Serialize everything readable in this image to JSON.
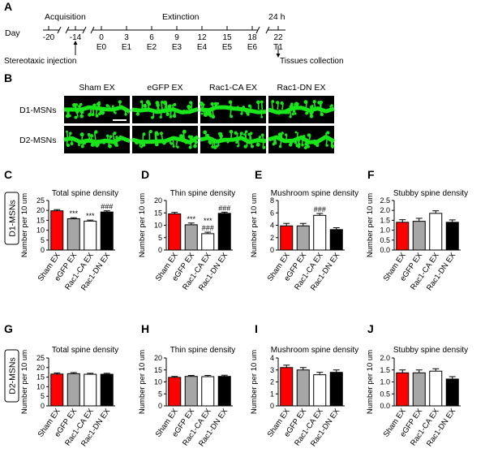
{
  "figure_letters": [
    "A",
    "B",
    "C",
    "D",
    "E",
    "F",
    "G",
    "H",
    "I",
    "J"
  ],
  "timeline": {
    "day_label": "Day",
    "ticks": [
      "-20",
      "-14",
      "0",
      "3",
      "6",
      "9",
      "12",
      "15",
      "18",
      "22"
    ],
    "phases": {
      "acquisition": "Acquisition",
      "extinction": "Extinction",
      "test": "24 h"
    },
    "sessions": [
      "E0",
      "E1",
      "E2",
      "E3",
      "E4",
      "E5",
      "E6",
      "T1"
    ],
    "injection_label": "Stereotaxic injection",
    "collection_label": "Tissues collection"
  },
  "images": {
    "columns": [
      "Sham EX",
      "eGFP EX",
      "Rac1-CA EX",
      "Rac1-DN EX"
    ],
    "rows": [
      "D1-MSNs",
      "D2-MSNs"
    ],
    "fill_color": "#000000",
    "dendrite_color": "#19e619"
  },
  "row_labels": [
    "D1-MSNs",
    "D2-MSNs"
  ],
  "colors": {
    "sham": "#ff0000",
    "egfp": "#a6a6a6",
    "ca": "#ffffff",
    "dn": "#000000"
  },
  "chart_data": [
    {
      "type": "bar",
      "title": "Total spine density",
      "ylabel": "Number per 10 um",
      "categories": [
        "Sham EX",
        "eGFP EX",
        "Rac1-CA EX",
        "Rac1-DN EX"
      ],
      "values": [
        19.8,
        15.8,
        14.6,
        19.2
      ],
      "errors": [
        0.6,
        0.5,
        0.5,
        0.6
      ],
      "yticks": [
        "0",
        "5",
        "10",
        "15",
        "20",
        "25"
      ],
      "ylim": [
        0,
        25
      ],
      "annotations": [
        "",
        "***",
        "***",
        "###"
      ]
    },
    {
      "type": "bar",
      "title": "Thin spine density",
      "ylabel": "Number per 10 um",
      "categories": [
        "Sham EX",
        "eGFP EX",
        "Rac1-CA EX",
        "Rac1-DN EX"
      ],
      "values": [
        14.6,
        10.2,
        6.6,
        14.8
      ],
      "errors": [
        0.6,
        0.7,
        0.6,
        0.5
      ],
      "yticks": [
        "0",
        "5",
        "10",
        "15",
        "20"
      ],
      "ylim": [
        0,
        20
      ],
      "annotations": [
        "",
        "***",
        "***\n###",
        "###"
      ]
    },
    {
      "type": "bar",
      "title": "Mushroom spine density",
      "ylabel": "Number per 10 um",
      "categories": [
        "Sham EX",
        "eGFP EX",
        "Rac1-CA EX",
        "Rac1-DN EX"
      ],
      "values": [
        3.9,
        3.9,
        5.6,
        3.3
      ],
      "errors": [
        0.4,
        0.4,
        0.3,
        0.3
      ],
      "yticks": [
        "0",
        "2",
        "4",
        "6",
        "8"
      ],
      "ylim": [
        0,
        8
      ],
      "annotations": [
        "",
        "",
        "###",
        ""
      ]
    },
    {
      "type": "bar",
      "title": "Stubby spine density",
      "ylabel": "Number per 10 um",
      "categories": [
        "Sham EX",
        "eGFP EX",
        "Rac1-CA EX",
        "Rac1-DN EX"
      ],
      "values": [
        1.4,
        1.45,
        1.85,
        1.4
      ],
      "errors": [
        0.13,
        0.15,
        0.13,
        0.12
      ],
      "yticks": [
        "0.0",
        "0.5",
        "1.0",
        "1.5",
        "2.0",
        "2.5"
      ],
      "ylim": [
        0,
        2.5
      ],
      "annotations": [
        "",
        "",
        "",
        ""
      ]
    },
    {
      "type": "bar",
      "title": "Total spine density",
      "ylabel": "Number per 10 um",
      "categories": [
        "Sham EX",
        "eGFP EX",
        "Rac1-CA EX",
        "Rac1-DN EX"
      ],
      "values": [
        16.6,
        16.8,
        16.5,
        16.5
      ],
      "errors": [
        0.6,
        0.6,
        0.5,
        0.5
      ],
      "yticks": [
        "0",
        "5",
        "10",
        "15",
        "20",
        "25"
      ],
      "ylim": [
        0,
        25
      ],
      "annotations": [
        "",
        "",
        "",
        ""
      ]
    },
    {
      "type": "bar",
      "title": "Thin spine density",
      "ylabel": "Number per 10 um",
      "categories": [
        "Sham EX",
        "eGFP EX",
        "Rac1-CA EX",
        "Rac1-DN EX"
      ],
      "values": [
        11.9,
        12.3,
        12.2,
        12.3
      ],
      "errors": [
        0.4,
        0.4,
        0.5,
        0.5
      ],
      "yticks": [
        "0",
        "5",
        "10",
        "15",
        "20"
      ],
      "ylim": [
        0,
        20
      ],
      "annotations": [
        "",
        "",
        "",
        ""
      ]
    },
    {
      "type": "bar",
      "title": "Mushroom spine density",
      "ylabel": "Number per 10 um",
      "categories": [
        "Sham EX",
        "eGFP EX",
        "Rac1-CA EX",
        "Rac1-DN EX"
      ],
      "values": [
        3.2,
        3.0,
        2.6,
        2.8
      ],
      "errors": [
        0.2,
        0.2,
        0.2,
        0.2
      ],
      "yticks": [
        "0",
        "1",
        "2",
        "3",
        "4"
      ],
      "ylim": [
        0,
        4
      ],
      "annotations": [
        "",
        "",
        "",
        ""
      ]
    },
    {
      "type": "bar",
      "title": "Stubby spine density",
      "ylabel": "Number per 10 um",
      "categories": [
        "Sham EX",
        "eGFP EX",
        "Rac1-CA EX",
        "Rac1-DN EX"
      ],
      "values": [
        1.38,
        1.38,
        1.45,
        1.12
      ],
      "errors": [
        0.12,
        0.12,
        0.1,
        0.1
      ],
      "yticks": [
        "0.0",
        "0.5",
        "1.0",
        "1.5",
        "2.0"
      ],
      "ylim": [
        0,
        2
      ],
      "annotations": [
        "",
        "",
        "",
        ""
      ]
    }
  ]
}
